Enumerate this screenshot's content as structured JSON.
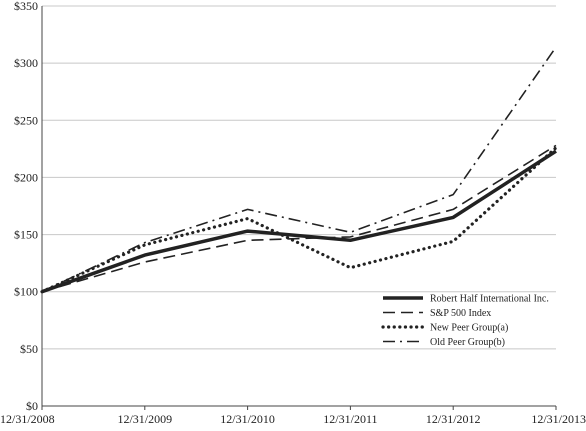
{
  "chart_data": {
    "type": "line",
    "title": "",
    "xlabel": "",
    "ylabel": "",
    "categories": [
      "12/31/2008",
      "12/31/2009",
      "12/31/2010",
      "12/31/2011",
      "12/31/2012",
      "12/31/2013"
    ],
    "y_ticks": [
      "$0",
      "$50",
      "$100",
      "$150",
      "$200",
      "$250",
      "$300",
      "$350"
    ],
    "ylim": [
      0,
      350
    ],
    "grid": "horizontal",
    "legend_position": "bottom-right",
    "series": [
      {
        "name": "Robert Half International Inc.",
        "values": [
          100,
          132,
          153,
          145,
          165,
          223
        ],
        "style": "solid-thick",
        "color": "#222222"
      },
      {
        "name": "S&P 500 Index",
        "values": [
          100,
          126,
          145,
          148,
          172,
          228
        ],
        "style": "dashed",
        "color": "#222222"
      },
      {
        "name": "New Peer Group(a)",
        "values": [
          100,
          141,
          164,
          121,
          144,
          226
        ],
        "style": "dotted",
        "color": "#222222"
      },
      {
        "name": "Old Peer Group(b)",
        "values": [
          100,
          143,
          172,
          152,
          185,
          314
        ],
        "style": "dash-dot",
        "color": "#222222"
      }
    ]
  }
}
